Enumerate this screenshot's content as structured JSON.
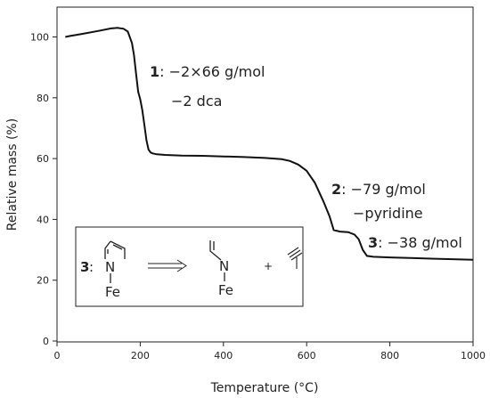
{
  "chart_data": {
    "type": "line",
    "title": "",
    "xlabel": "Temperature (°C)",
    "ylabel": "Relative mass (%)",
    "xlim": [
      0,
      1000
    ],
    "ylim": [
      0,
      110
    ],
    "x_ticks": [
      "0",
      "200",
      "400",
      "600",
      "800",
      "1000"
    ],
    "y_ticks": [
      "0",
      "20",
      "40",
      "60",
      "80",
      "100"
    ],
    "grid": false,
    "series": [
      {
        "x": [
          20,
          30,
          60,
          100,
          130,
          145,
          160,
          170,
          180,
          185,
          190,
          195,
          200,
          205,
          210,
          215,
          220,
          225,
          230,
          240,
          260,
          300,
          350,
          400,
          450,
          500,
          540,
          560,
          580,
          600,
          620,
          640,
          655,
          665,
          680,
          700,
          715,
          725,
          735,
          745,
          760,
          800,
          850,
          900,
          950,
          1000
        ],
        "y": [
          100,
          100.3,
          101,
          102,
          102.8,
          103,
          102.7,
          101.8,
          98,
          94,
          88,
          82,
          79.5,
          76,
          71,
          66,
          63,
          62,
          61.7,
          61.4,
          61.2,
          61,
          60.9,
          60.7,
          60.5,
          60.2,
          59.8,
          59.2,
          58,
          56,
          52,
          46,
          41,
          36.5,
          36,
          35.8,
          35,
          33.5,
          30,
          28,
          27.7,
          27.5,
          27.3,
          27.1,
          26.9,
          26.7
        ]
      }
    ],
    "annotations": [
      {
        "bold": "1",
        "text": ": −2×66 g/mol",
        "line2": "−2 dca"
      },
      {
        "bold": "2",
        "text": ": −79 g/mol",
        "line2": "−pyridine"
      },
      {
        "bold": "3",
        "text": ": −38 g/mol"
      }
    ]
  },
  "inset": {
    "label": "3",
    "colon": ":",
    "n_atom": "N",
    "fe_atom": "Fe",
    "plus": "+"
  }
}
